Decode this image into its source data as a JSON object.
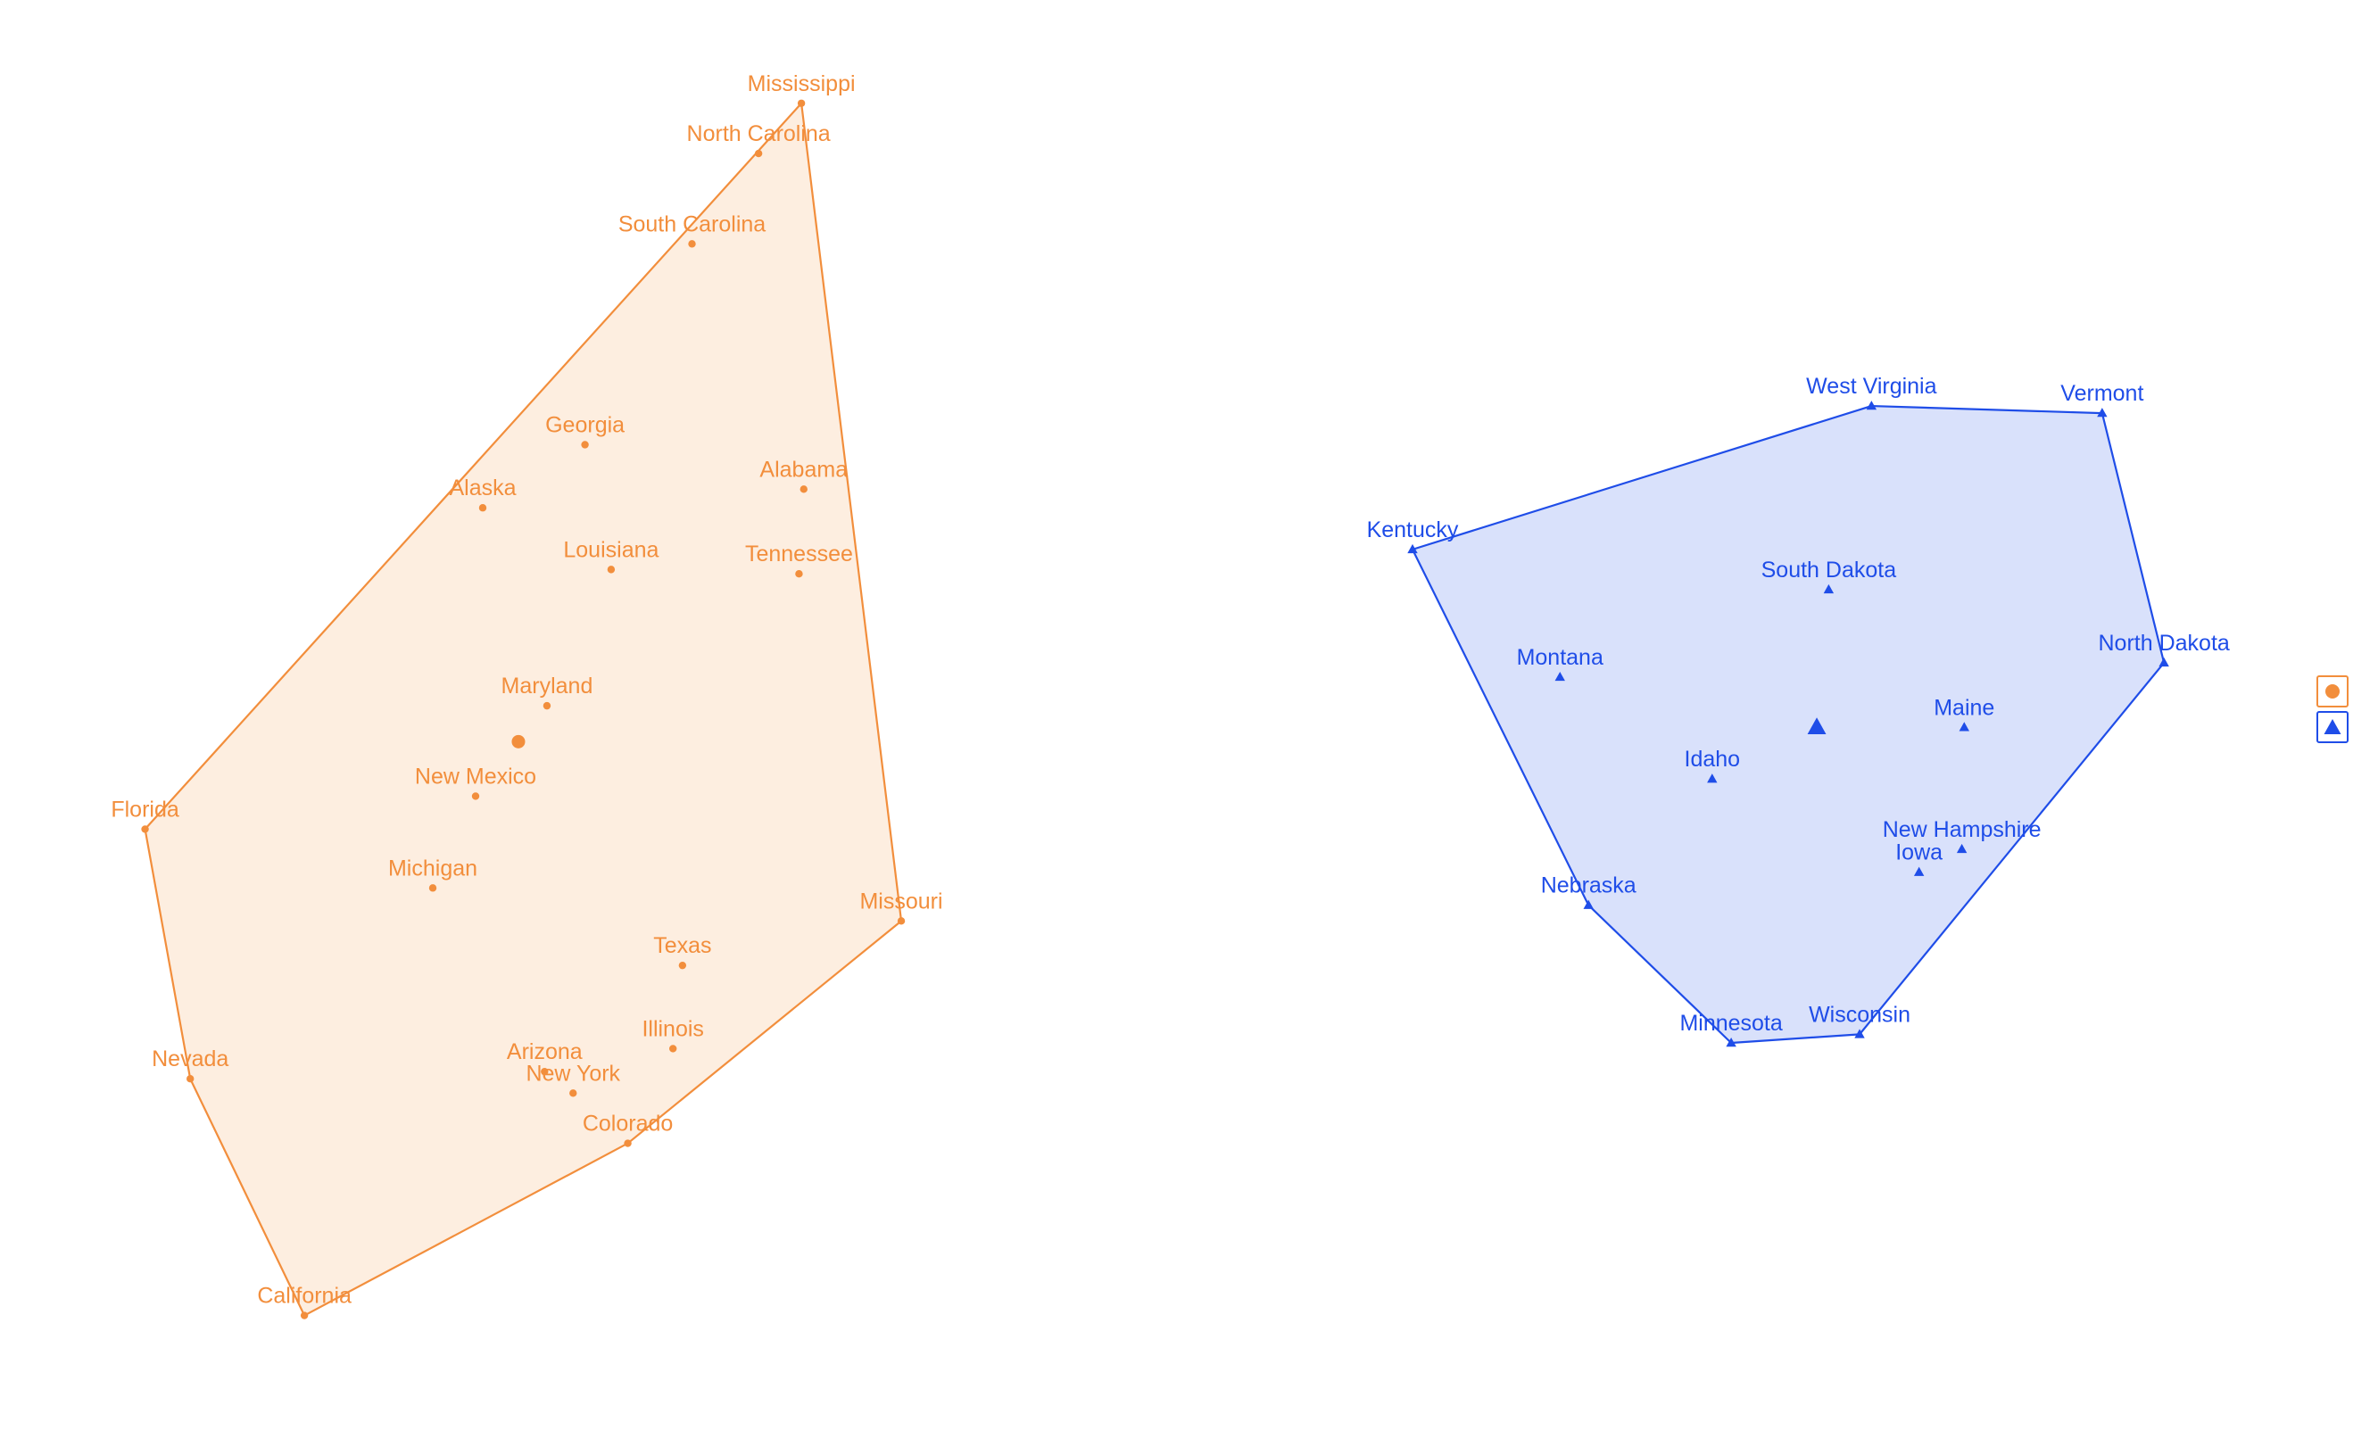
{
  "chart_data": {
    "type": "scatter",
    "title": "",
    "xlabel": "",
    "ylabel": "",
    "grid": false,
    "axes_visible": false,
    "legend": {
      "placement": "right",
      "entries": [
        {
          "marker": "circle",
          "color": "#f28e3c"
        },
        {
          "marker": "triangle",
          "color": "#1f4de8"
        }
      ]
    },
    "note": "No axes or tick labels are printed; x/y values are in normalized plot units estimated from marker positions (x rightward, y upward).",
    "series": [
      {
        "color": "#f28e3c",
        "fill": "#fdeee0",
        "marker": "circle",
        "centroid": {
          "x": 0.218,
          "y": 0.483
        },
        "hull": [
          "Mississippi",
          "Missouri",
          "Colorado",
          "California",
          "Nevada",
          "Florida"
        ],
        "points": [
          {
            "label": "Mississippi",
            "x": 0.337,
            "y": 0.928
          },
          {
            "label": "North Carolina",
            "x": 0.319,
            "y": 0.893
          },
          {
            "label": "South Carolina",
            "x": 0.291,
            "y": 0.83
          },
          {
            "label": "Georgia",
            "x": 0.246,
            "y": 0.69
          },
          {
            "label": "Alabama",
            "x": 0.338,
            "y": 0.659
          },
          {
            "label": "Alaska",
            "x": 0.203,
            "y": 0.646
          },
          {
            "label": "Louisiana",
            "x": 0.257,
            "y": 0.603
          },
          {
            "label": "Tennessee",
            "x": 0.336,
            "y": 0.6
          },
          {
            "label": "Maryland",
            "x": 0.23,
            "y": 0.508
          },
          {
            "label": "New Mexico",
            "x": 0.2,
            "y": 0.445
          },
          {
            "label": "Florida",
            "x": 0.061,
            "y": 0.422
          },
          {
            "label": "Michigan",
            "x": 0.182,
            "y": 0.381
          },
          {
            "label": "Missouri",
            "x": 0.379,
            "y": 0.358
          },
          {
            "label": "Texas",
            "x": 0.287,
            "y": 0.327
          },
          {
            "label": "Illinois",
            "x": 0.283,
            "y": 0.269
          },
          {
            "label": "Arizona",
            "x": 0.229,
            "y": 0.253
          },
          {
            "label": "New York",
            "x": 0.241,
            "y": 0.238
          },
          {
            "label": "Nevada",
            "x": 0.08,
            "y": 0.248
          },
          {
            "label": "Colorado",
            "x": 0.264,
            "y": 0.203
          },
          {
            "label": "California",
            "x": 0.128,
            "y": 0.083
          }
        ]
      },
      {
        "color": "#1f4de8",
        "fill": "#d9e1fb",
        "marker": "triangle",
        "centroid": {
          "x": 0.764,
          "y": 0.493
        },
        "hull": [
          "West Virginia",
          "Vermont",
          "North Dakota",
          "Wisconsin",
          "Minnesota",
          "Nebraska",
          "Kentucky"
        ],
        "points": [
          {
            "label": "West Virginia",
            "x": 0.787,
            "y": 0.717
          },
          {
            "label": "Vermont",
            "x": 0.884,
            "y": 0.712
          },
          {
            "label": "Kentucky",
            "x": 0.594,
            "y": 0.617
          },
          {
            "label": "South Dakota",
            "x": 0.769,
            "y": 0.589
          },
          {
            "label": "North Dakota",
            "x": 0.91,
            "y": 0.538
          },
          {
            "label": "Montana",
            "x": 0.656,
            "y": 0.528
          },
          {
            "label": "Maine",
            "x": 0.826,
            "y": 0.493
          },
          {
            "label": "Idaho",
            "x": 0.72,
            "y": 0.457
          },
          {
            "label": "New Hampshire",
            "x": 0.825,
            "y": 0.408
          },
          {
            "label": "Iowa",
            "x": 0.807,
            "y": 0.392
          },
          {
            "label": "Nebraska",
            "x": 0.668,
            "y": 0.369
          },
          {
            "label": "Wisconsin",
            "x": 0.782,
            "y": 0.279
          },
          {
            "label": "Minnesota",
            "x": 0.728,
            "y": 0.273
          }
        ]
      }
    ]
  }
}
